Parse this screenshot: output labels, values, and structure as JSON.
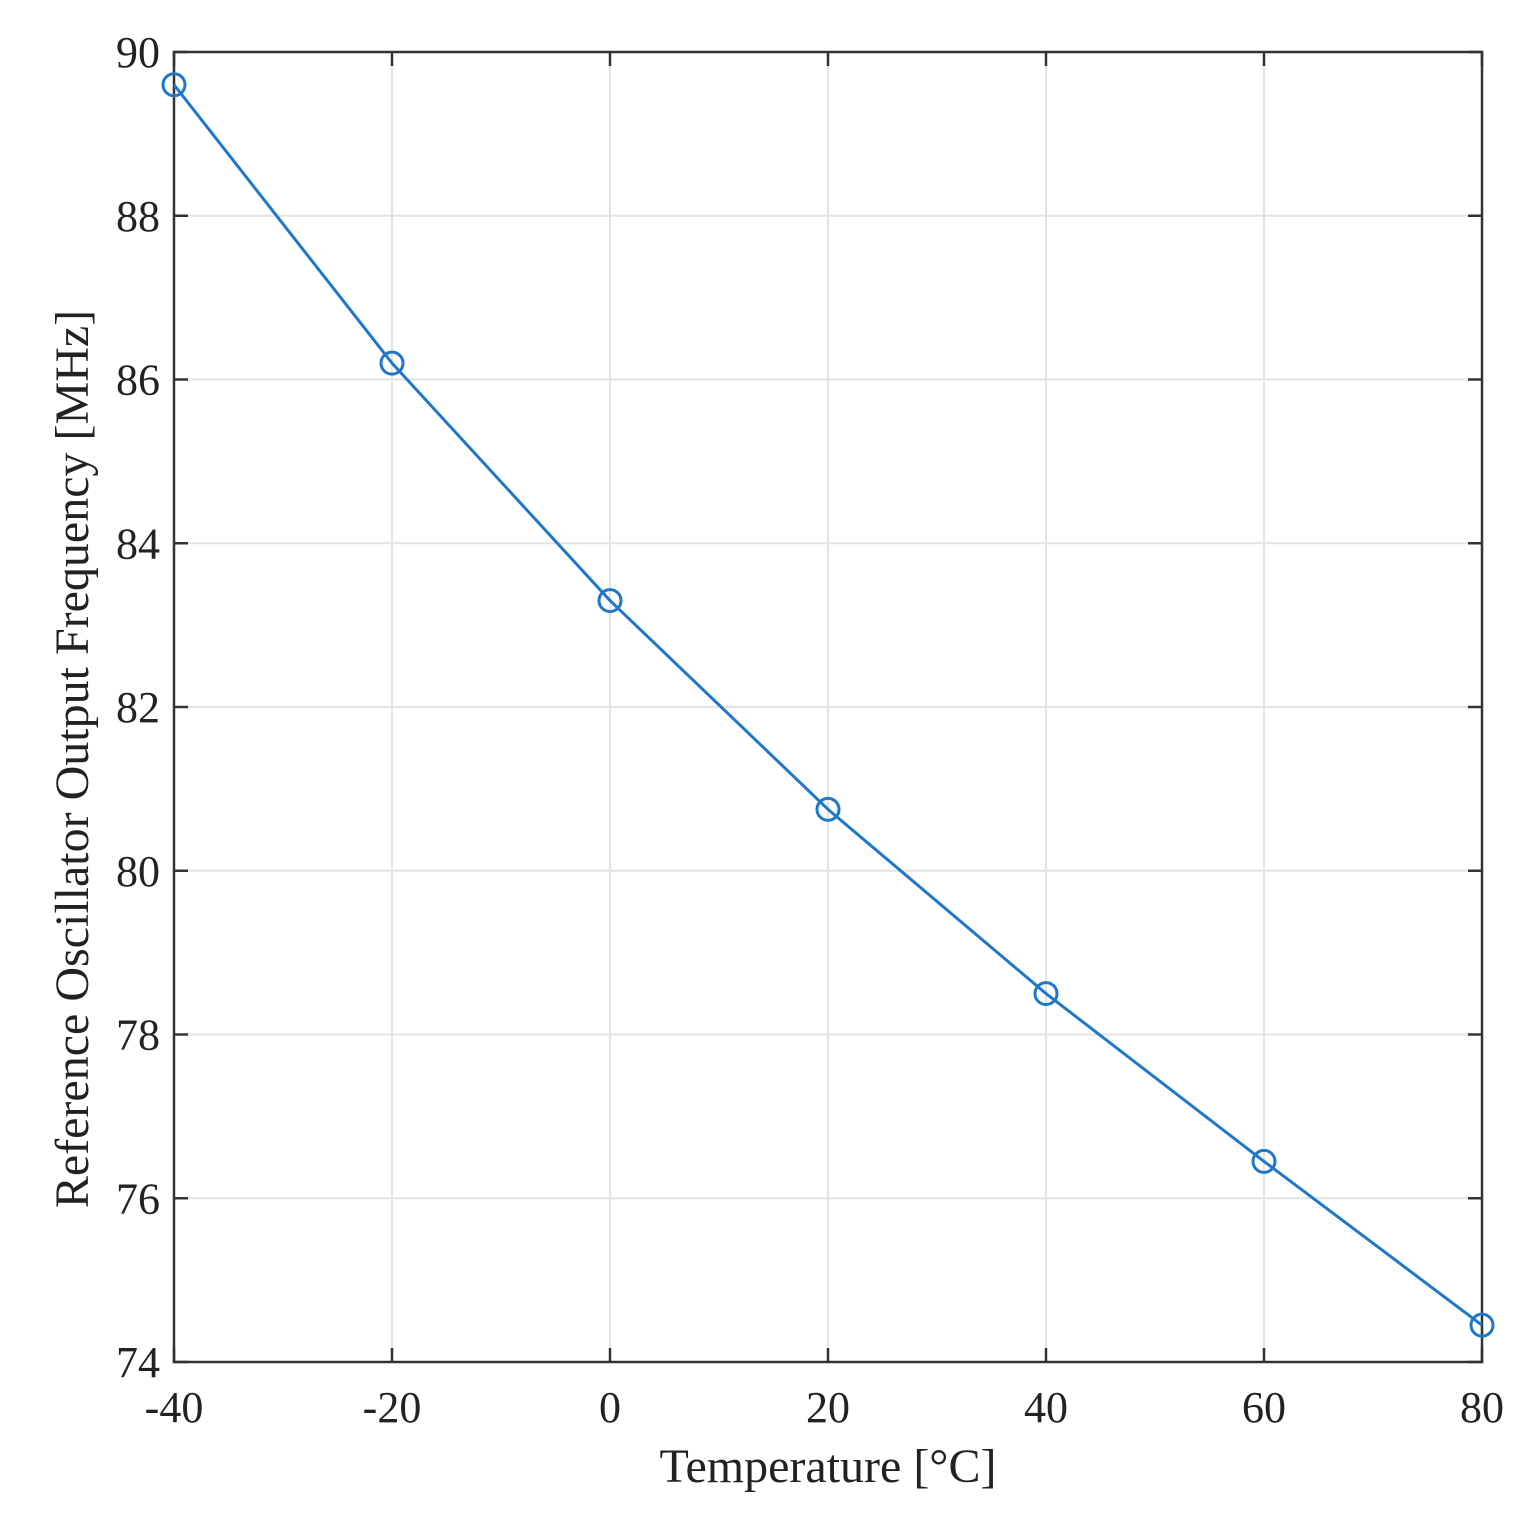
{
  "chart_data": {
    "type": "line",
    "title": "",
    "xlabel": "Temperature [°C]",
    "ylabel": "Reference Oscillator Output Frequency [MHz]",
    "xlim": [
      -40,
      80
    ],
    "ylim": [
      74,
      90
    ],
    "x_ticks": [
      "-40",
      "-20",
      "0",
      "20",
      "40",
      "60",
      "80"
    ],
    "y_ticks": [
      "74",
      "76",
      "78",
      "80",
      "82",
      "84",
      "86",
      "88",
      "90"
    ],
    "grid": true,
    "series": [
      {
        "name": "Reference Oscillator Output Frequency",
        "marker": "circle",
        "color": "#1f77c9",
        "x": [
          -40,
          -20,
          0,
          20,
          40,
          60,
          80
        ],
        "y": [
          89.6,
          86.2,
          83.3,
          80.75,
          78.5,
          76.45,
          74.45
        ]
      }
    ]
  },
  "colors": {
    "series": "#1f77c9",
    "grid": "#e3e3e3",
    "axis": "#333333"
  }
}
